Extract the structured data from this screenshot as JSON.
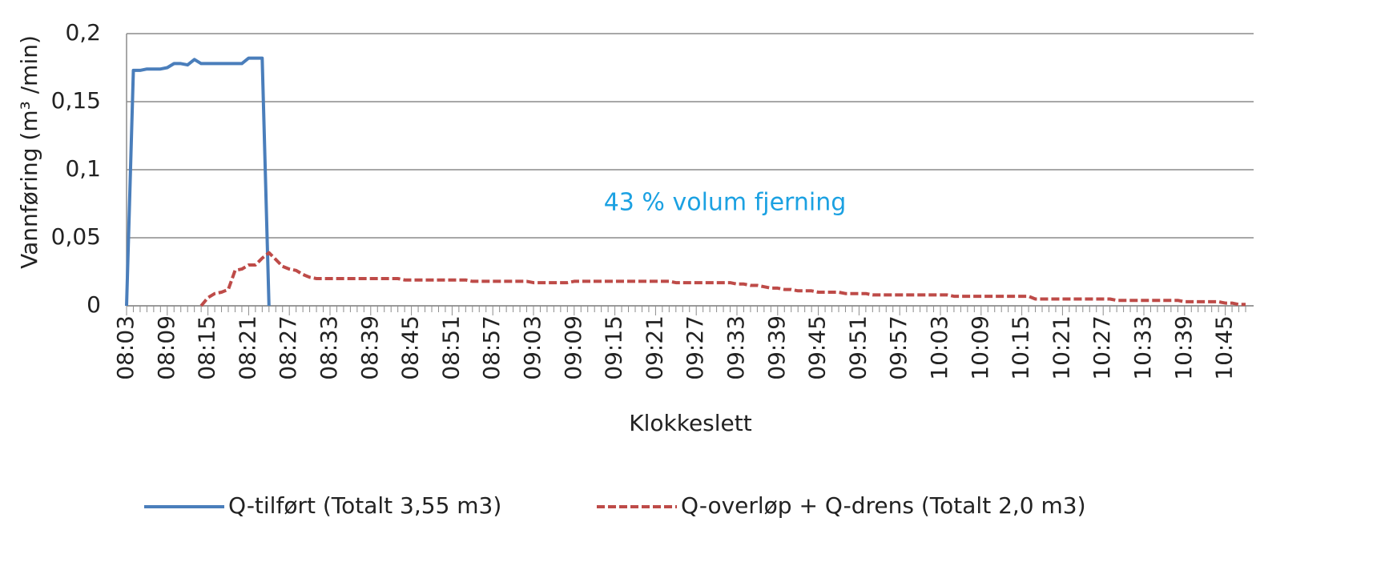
{
  "chart_data": {
    "type": "line",
    "y_label": "Vannføring (m³ /min)",
    "x_label": "Klokkeslett",
    "annotation": "43 % volum fjerning",
    "grid": true,
    "legend": "bottom",
    "ylim": [
      0,
      0.2
    ],
    "yticks": [
      0,
      {
        "value": 0.05,
        "label": "0,05"
      },
      {
        "value": 0.1,
        "label": "0,1"
      },
      {
        "value": 0.15,
        "label": "0,15"
      },
      {
        "value": 0.2,
        "label": "0,2"
      }
    ],
    "categories": [
      "08:03",
      null,
      null,
      null,
      null,
      null,
      "08:09",
      null,
      null,
      null,
      null,
      null,
      "08:15",
      null,
      null,
      null,
      null,
      null,
      "08:21",
      null,
      null,
      null,
      null,
      null,
      "08:27",
      null,
      null,
      null,
      null,
      null,
      "08:33",
      null,
      null,
      null,
      null,
      null,
      "08:39",
      null,
      null,
      null,
      null,
      null,
      "08:45",
      null,
      null,
      null,
      null,
      null,
      "08:51",
      null,
      null,
      null,
      null,
      null,
      "08:57",
      null,
      null,
      null,
      null,
      null,
      "09:03",
      null,
      null,
      null,
      null,
      null,
      "09:09",
      null,
      null,
      null,
      null,
      null,
      "09:15",
      null,
      null,
      null,
      null,
      null,
      "09:21",
      null,
      null,
      null,
      null,
      null,
      "09:27",
      null,
      null,
      null,
      null,
      null,
      "09:33",
      null,
      null,
      null,
      null,
      null,
      "09:39",
      null,
      null,
      null,
      null,
      null,
      "09:45",
      null,
      null,
      null,
      null,
      null,
      "09:51",
      null,
      null,
      null,
      null,
      null,
      "09:57",
      null,
      null,
      null,
      null,
      null,
      "10:03",
      null,
      null,
      null,
      null,
      null,
      "10:09",
      null,
      null,
      null,
      null,
      null,
      "10:15",
      null,
      null,
      null,
      null,
      null,
      "10:21",
      null,
      null,
      null,
      null,
      null,
      "10:27",
      null,
      null,
      null,
      null,
      null,
      "10:33",
      null,
      null,
      null,
      null,
      null,
      "10:39",
      null,
      null,
      null,
      null,
      null,
      "10:45",
      null,
      null,
      null
    ],
    "series": [
      {
        "name": "Q-tilført (Totalt 3,55 m3)",
        "color": "#4a7ebb",
        "dashed": false,
        "values": [
          0,
          0.173,
          0.173,
          0.174,
          0.174,
          0.174,
          0.175,
          0.178,
          0.178,
          0.177,
          0.181,
          0.178,
          0.178,
          0.178,
          0.178,
          0.178,
          0.178,
          0.178,
          0.182,
          0.182,
          0.182,
          0,
          null,
          null,
          null,
          null,
          null,
          null,
          null,
          null,
          null,
          null,
          null,
          null,
          null,
          null,
          null,
          null,
          null,
          null,
          null,
          null,
          null,
          null,
          null,
          null,
          null,
          null,
          null,
          null,
          null,
          null,
          null,
          null,
          null,
          null,
          null,
          null,
          null,
          null,
          null,
          null,
          null,
          null,
          null,
          null,
          null,
          null,
          null,
          null,
          null,
          null,
          null,
          null,
          null,
          null,
          null,
          null,
          null,
          null,
          null,
          null,
          null,
          null,
          null,
          null,
          null,
          null,
          null,
          null,
          null,
          null,
          null,
          null,
          null,
          null,
          null,
          null,
          null,
          null,
          null,
          null,
          null,
          null,
          null,
          null,
          null,
          null,
          null,
          null,
          null,
          null,
          null,
          null,
          null,
          null,
          null,
          null,
          null,
          null,
          null,
          null,
          null,
          null,
          null,
          null,
          null,
          null,
          null,
          null,
          null,
          null,
          null,
          null,
          null,
          null,
          null,
          null,
          null,
          null,
          null,
          null,
          null,
          null,
          null,
          null,
          null,
          null,
          null,
          null,
          null,
          null,
          null,
          null,
          null,
          null,
          null,
          null,
          null,
          null,
          null,
          null,
          null,
          null,
          null,
          null
        ]
      },
      {
        "name": "Q-overløp + Q-drens (Totalt 2,0 m3)",
        "color": "#be4b48",
        "dashed": true,
        "values": [
          null,
          null,
          null,
          null,
          null,
          null,
          null,
          null,
          null,
          null,
          null,
          0,
          0.006,
          0.009,
          0.01,
          0.012,
          0.026,
          0.027,
          0.03,
          0.03,
          0.035,
          0.039,
          0.034,
          0.029,
          0.027,
          0.026,
          0.023,
          0.021,
          0.02,
          0.02,
          0.02,
          0.02,
          0.02,
          0.02,
          0.02,
          0.02,
          0.02,
          0.02,
          0.02,
          0.02,
          0.02,
          0.019,
          0.019,
          0.019,
          0.019,
          0.019,
          0.019,
          0.019,
          0.019,
          0.019,
          0.019,
          0.018,
          0.018,
          0.018,
          0.018,
          0.018,
          0.018,
          0.018,
          0.018,
          0.018,
          0.017,
          0.017,
          0.017,
          0.017,
          0.017,
          0.017,
          0.018,
          0.018,
          0.018,
          0.018,
          0.018,
          0.018,
          0.018,
          0.018,
          0.018,
          0.018,
          0.018,
          0.018,
          0.018,
          0.018,
          0.018,
          0.017,
          0.017,
          0.017,
          0.017,
          0.017,
          0.017,
          0.017,
          0.017,
          0.017,
          0.016,
          0.016,
          0.015,
          0.015,
          0.014,
          0.013,
          0.013,
          0.012,
          0.012,
          0.011,
          0.011,
          0.011,
          0.01,
          0.01,
          0.01,
          0.01,
          0.009,
          0.009,
          0.009,
          0.009,
          0.008,
          0.008,
          0.008,
          0.008,
          0.008,
          0.008,
          0.008,
          0.008,
          0.008,
          0.008,
          0.008,
          0.008,
          0.007,
          0.007,
          0.007,
          0.007,
          0.007,
          0.007,
          0.007,
          0.007,
          0.007,
          0.007,
          0.007,
          0.007,
          0.005,
          0.005,
          0.005,
          0.005,
          0.005,
          0.005,
          0.005,
          0.005,
          0.005,
          0.005,
          0.005,
          0.005,
          0.004,
          0.004,
          0.004,
          0.004,
          0.004,
          0.004,
          0.004,
          0.004,
          0.004,
          0.004,
          0.003,
          0.003,
          0.003,
          0.003,
          0.003,
          0.003,
          0.002,
          0.002,
          0.001,
          0.001
        ]
      }
    ]
  }
}
